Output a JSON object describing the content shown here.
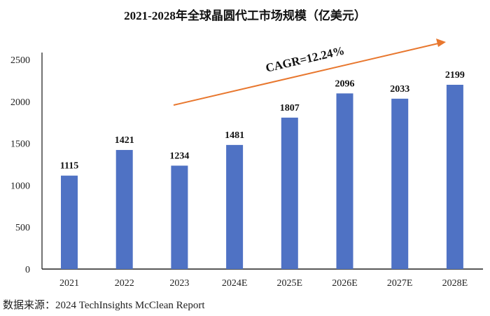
{
  "chart_data": {
    "type": "bar",
    "title": "2021-2028年全球晶圆代工市场规模（亿美元）",
    "categories": [
      "2021",
      "2022",
      "2023",
      "2024E",
      "2025E",
      "2026E",
      "2027E",
      "2028E"
    ],
    "values": [
      1115,
      1421,
      1234,
      1481,
      1807,
      2096,
      2033,
      2199
    ],
    "data_labels": [
      "1115",
      "1421",
      "1234",
      "1481",
      "1807",
      "2096",
      "2033",
      "2199"
    ],
    "ylim": [
      0,
      2500
    ],
    "yticks": [
      "0",
      "500",
      "1000",
      "1500",
      "2000",
      "2500"
    ],
    "grid": false,
    "bar_color": "#4F72C4",
    "annotation": {
      "text": "CAGR=12.24%",
      "arrow_color": "#E8772E"
    },
    "source": "数据来源：2024 TechInsights McClean Report"
  }
}
